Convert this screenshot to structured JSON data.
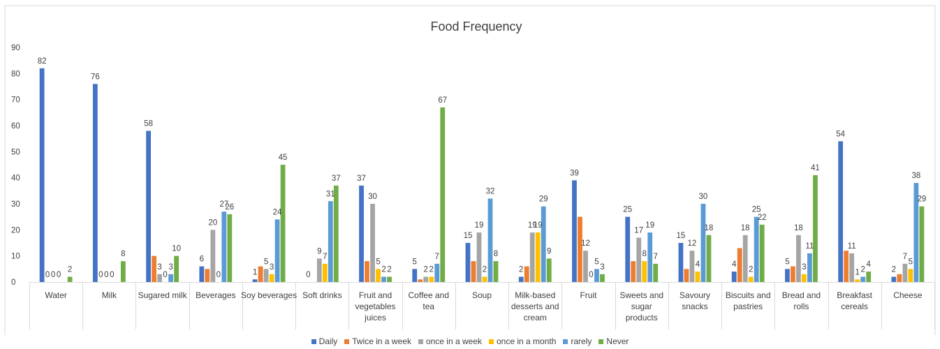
{
  "chart_data": {
    "type": "bar",
    "title": "Food Frequency",
    "categories": [
      "Water",
      "Milk",
      "Sugared milk",
      "Beverages",
      "Soy beverages",
      "Soft drinks",
      "Fruit and vegetables juices",
      "Coffee and tea",
      "Soup",
      "Milk-based desserts and cream",
      "Fruit",
      "Sweets and sugar products",
      "Savoury snacks",
      "Biscuits and pastries",
      "Bread and rolls",
      "Breakfast cereals",
      "Cheese"
    ],
    "series": [
      {
        "name": "Daily",
        "color": "#4472C4",
        "values": [
          82,
          76,
          58,
          6,
          1,
          0,
          37,
          5,
          15,
          2,
          39,
          25,
          15,
          4,
          5,
          54,
          2
        ]
      },
      {
        "name": "Twice in a week",
        "color": "#ED7D31",
        "values": [
          0,
          0,
          10,
          5,
          6,
          0,
          8,
          1,
          8,
          6,
          25,
          8,
          5,
          13,
          6,
          12,
          3
        ]
      },
      {
        "name": "once in a week",
        "color": "#A5A5A5",
        "values": [
          0,
          0,
          3,
          20,
          5,
          9,
          30,
          2,
          19,
          19,
          12,
          17,
          12,
          18,
          18,
          11,
          7
        ]
      },
      {
        "name": "once in a month",
        "color": "#FFC000",
        "values": [
          0,
          0,
          0,
          0,
          3,
          7,
          5,
          2,
          2,
          19,
          0,
          8,
          4,
          2,
          3,
          1,
          5
        ]
      },
      {
        "name": "rarely",
        "color": "#5B9BD5",
        "values": [
          0,
          0,
          3,
          27,
          24,
          31,
          2,
          7,
          32,
          29,
          5,
          19,
          30,
          25,
          11,
          2,
          38
        ]
      },
      {
        "name": "Never",
        "color": "#70AD47",
        "values": [
          2,
          8,
          10,
          26,
          45,
          37,
          2,
          67,
          8,
          9,
          3,
          7,
          18,
          22,
          41,
          4,
          29
        ]
      }
    ],
    "labels": [
      [
        "82",
        "76",
        "58",
        "6",
        "1",
        "0",
        "37",
        "5",
        "15",
        "2",
        "39",
        "25",
        "15",
        "4",
        "5",
        "54",
        "2"
      ],
      [
        "0",
        "0",
        "",
        "",
        "",
        "",
        "",
        "",
        "",
        "",
        "",
        "",
        "",
        "",
        "",
        "",
        ""
      ],
      [
        "0",
        "0",
        "3",
        "20",
        "5",
        "9",
        "30",
        "2",
        "19",
        "19",
        "12",
        "17",
        "12",
        "18",
        "18",
        "11",
        "7"
      ],
      [
        "0",
        "0",
        "0",
        "0",
        "3",
        "7",
        "5",
        "2",
        "2",
        "19",
        "0",
        "8",
        "4",
        "2",
        "3",
        "1",
        "5"
      ],
      [
        "",
        "",
        "3",
        "27",
        "24",
        "31",
        "2",
        "7",
        "32",
        "29",
        "5",
        "19",
        "30",
        "25",
        "11",
        "2",
        "38"
      ],
      [
        "2",
        "8",
        "10",
        "26",
        "45",
        "37",
        "2",
        "67",
        "8",
        "9",
        "3",
        "7",
        "18",
        "22",
        "41",
        "4",
        "29"
      ]
    ],
    "yticks": [
      "0",
      "10",
      "20",
      "30",
      "40",
      "50",
      "60",
      "70",
      "80",
      "90"
    ],
    "ylim": [
      0,
      90
    ],
    "xlabel": "",
    "ylabel": "",
    "grid": false,
    "legend_position": "bottom"
  }
}
